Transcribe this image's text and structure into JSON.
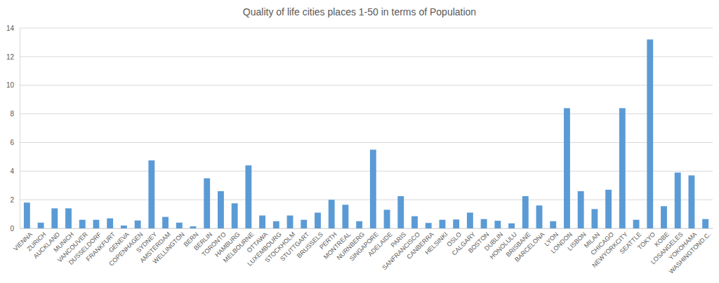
{
  "chart_data": {
    "type": "bar",
    "title": "Quality of life cities places 1-50 in terms of Population",
    "categories": [
      "VIENNA",
      "ZURICH",
      "AUCKLAND",
      "MUNICH",
      "VANCOUVER",
      "DUSSELDORF",
      "FRANKFURT",
      "GENEVA",
      "COPENHAGEN",
      "SYDNEY",
      "AMSTERDAM",
      "WELLINGTON",
      "BERN",
      "BERLIN",
      "TORONTO",
      "HAMBURG",
      "MELBOURNE",
      "OTTAWA",
      "LUXEMBOURG",
      "STOCKHOLM",
      "STUTTGART",
      "BRUSSELS",
      "PERTH",
      "MONTREAL",
      "NURNBERG",
      "SINGAPORE",
      "ADELAIDE",
      "PARIS",
      "SANFRANCISCO",
      "CANBERRA",
      "HELSINKI",
      "OSLO",
      "CALGARY",
      "BOSTON",
      "DUBLIN",
      "HONOLULU",
      "BRISBANE",
      "BARCELONA",
      "LYON",
      "LONDON",
      "LISBON",
      "MILAN",
      "CHICAGO",
      "NEWYORKCITY",
      "SEATTLE",
      "TOKYO",
      "KOBE",
      "LOSANGELES",
      "YOKOHAMA",
      "WASHINGTOND.C."
    ],
    "values": [
      1.8,
      0.4,
      1.4,
      1.4,
      0.6,
      0.6,
      0.7,
      0.2,
      0.55,
      4.75,
      0.8,
      0.4,
      0.14,
      3.5,
      2.6,
      1.75,
      4.4,
      0.9,
      0.5,
      0.9,
      0.6,
      1.1,
      2.0,
      1.65,
      0.5,
      5.5,
      1.3,
      2.25,
      0.85,
      0.38,
      0.6,
      0.62,
      1.1,
      0.65,
      0.53,
      0.35,
      2.25,
      1.6,
      0.5,
      8.4,
      2.6,
      1.35,
      2.7,
      8.4,
      0.6,
      13.2,
      1.55,
      3.9,
      3.7,
      0.65
    ],
    "color": "#5b9bd5",
    "ylim": [
      0,
      14
    ],
    "yticks": [
      0,
      2,
      4,
      6,
      8,
      10,
      12,
      14
    ],
    "grid": true
  }
}
